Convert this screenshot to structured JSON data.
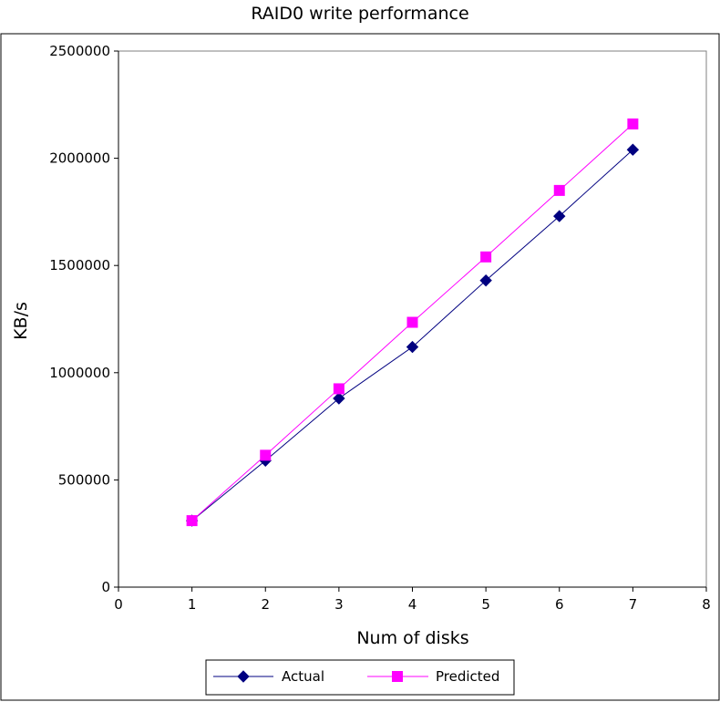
{
  "chart_data": {
    "type": "line",
    "title": "RAID0 write performance",
    "xlabel": "Num of disks",
    "ylabel": "KB/s",
    "xlim": [
      0,
      8
    ],
    "ylim": [
      0,
      2500000
    ],
    "x_ticks": [
      "0",
      "1",
      "2",
      "3",
      "4",
      "5",
      "6",
      "7",
      "8"
    ],
    "y_ticks": [
      "0",
      "500000",
      "1000000",
      "1500000",
      "2000000",
      "2500000"
    ],
    "grid": false,
    "legend_position": "bottom",
    "x": [
      1,
      2,
      3,
      4,
      5,
      6,
      7
    ],
    "series": [
      {
        "name": "Actual",
        "color": "#000080",
        "marker": "diamond",
        "values": [
          310000,
          590000,
          880000,
          1120000,
          1430000,
          1730000,
          2040000
        ]
      },
      {
        "name": "Predicted",
        "color": "#FF00FF",
        "marker": "square",
        "values": [
          310000,
          615000,
          925000,
          1235000,
          1540000,
          1850000,
          2160000
        ]
      }
    ]
  }
}
